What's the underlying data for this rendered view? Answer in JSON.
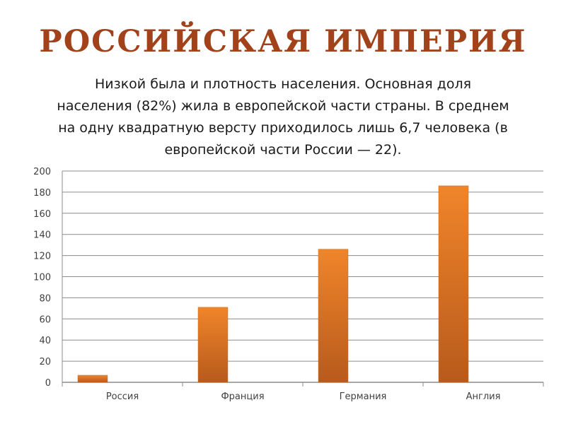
{
  "slide": {
    "title": "РОССИЙСКАЯ ИМПЕРИЯ",
    "text_lines": [
      "Низкой была и плотность населения. Основная доля",
      "населения (82%) жила в европейской части страны. В среднем",
      "на одну квадратную версту приходилось лишь 6,7 человека (в",
      "европейской части России — 22)."
    ]
  },
  "chart_data": {
    "type": "bar",
    "categories": [
      "Россия",
      "Франция",
      "Германия",
      "Англия"
    ],
    "values": [
      6.7,
      71,
      126,
      186
    ],
    "ylim": [
      0,
      200
    ],
    "y_ticks": [
      0,
      20,
      40,
      60,
      80,
      100,
      120,
      140,
      160,
      180,
      200
    ],
    "grid": true,
    "legend": "none",
    "colors": {
      "bar_top": "#f0852a",
      "bar_bottom": "#b85a1c",
      "grid": "#8c8c8c"
    }
  }
}
